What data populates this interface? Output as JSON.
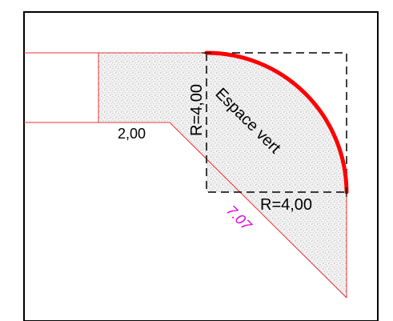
{
  "labels": {
    "dim_width": "2,00",
    "radius_vertical": "R=4,00",
    "radius_horizontal": "R=4,00",
    "zone_name": "Espace vert",
    "diagonal_length": "7.07"
  },
  "colors": {
    "frame": "#000000",
    "property_line": "#e8343a",
    "arc": "#ff0000",
    "dimension_text": "#000000",
    "diagonal_text": "#e000e0",
    "hatch_fill": "#f3f3f3",
    "hatch_dots": "#7a7a7a"
  }
}
